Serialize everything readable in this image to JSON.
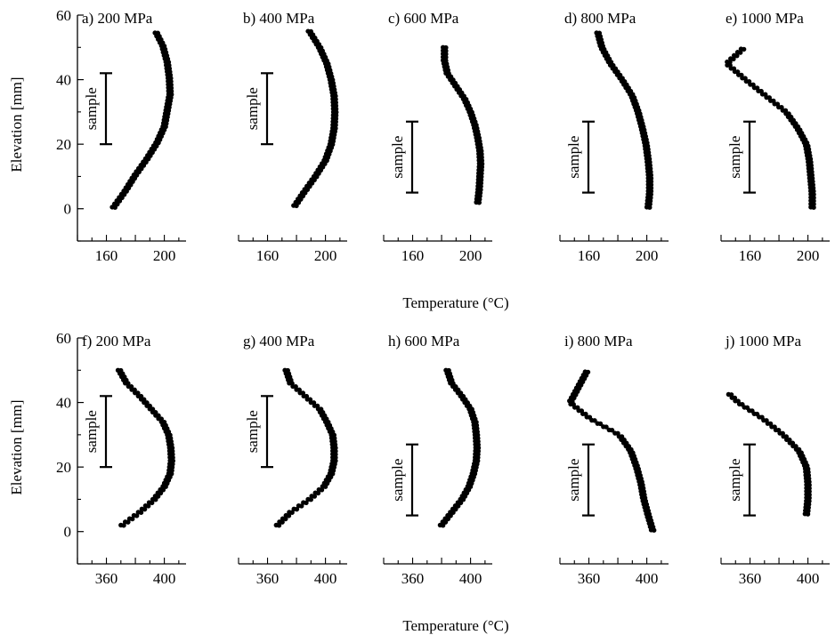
{
  "figure": {
    "xlabel": "Temperature (°C)",
    "ylabel": "Elevation [mm]",
    "sample_label": "sample"
  },
  "chart_data": [
    {
      "type": "scatter",
      "row": 0,
      "col": 0,
      "title": "a) 200 MPa",
      "xlim": [
        140,
        215
      ],
      "ylim": [
        -10,
        60
      ],
      "xticks": [
        160,
        200
      ],
      "xtick_labels": [
        "160",
        "200"
      ],
      "yticks": [
        0,
        20,
        40,
        60
      ],
      "ytick_labels": [
        "0",
        "20",
        "40",
        "60"
      ],
      "sample_range": [
        20,
        42
      ],
      "profile": [
        [
          0.5,
          164
        ],
        [
          5.5,
          172
        ],
        [
          10.5,
          179
        ],
        [
          15.5,
          187
        ],
        [
          20.5,
          194
        ],
        [
          25.5,
          199
        ],
        [
          30.5,
          201
        ],
        [
          35.5,
          203
        ],
        [
          40.5,
          202.5
        ],
        [
          45.5,
          201
        ],
        [
          50.5,
          198
        ],
        [
          55,
          193
        ]
      ]
    },
    {
      "type": "scatter",
      "row": 0,
      "col": 1,
      "title": "b) 400 MPa",
      "xlim": [
        140,
        215
      ],
      "ylim": [
        -10,
        60
      ],
      "xticks": [
        160,
        200
      ],
      "xtick_labels": [
        "160",
        "200"
      ],
      "sample_range": [
        20,
        42
      ],
      "profile": [
        [
          1,
          178
        ],
        [
          5,
          184
        ],
        [
          10,
          192
        ],
        [
          15,
          199
        ],
        [
          20,
          203
        ],
        [
          25,
          205
        ],
        [
          30,
          205.5
        ],
        [
          35,
          205
        ],
        [
          40,
          203
        ],
        [
          45,
          200
        ],
        [
          50,
          195
        ],
        [
          55,
          188
        ]
      ]
    },
    {
      "type": "scatter",
      "row": 0,
      "col": 2,
      "title": "c) 600 MPa",
      "xlim": [
        140,
        215
      ],
      "ylim": [
        -10,
        60
      ],
      "xticks": [
        160,
        200
      ],
      "xtick_labels": [
        "160",
        "200"
      ],
      "sample_range": [
        5,
        27
      ],
      "profile": [
        [
          2,
          204
        ],
        [
          6,
          205
        ],
        [
          10,
          205.5
        ],
        [
          14,
          206
        ],
        [
          18,
          205.5
        ],
        [
          22,
          204
        ],
        [
          26,
          202
        ],
        [
          30,
          199
        ],
        [
          34,
          195
        ],
        [
          38,
          189
        ],
        [
          42,
          183
        ],
        [
          46,
          181
        ],
        [
          50,
          181
        ]
      ]
    },
    {
      "type": "scatter",
      "row": 0,
      "col": 3,
      "title": "d) 800 MPa",
      "xlim": [
        140,
        215
      ],
      "ylim": [
        -10,
        60
      ],
      "xticks": [
        160,
        200
      ],
      "xtick_labels": [
        "160",
        "200"
      ],
      "sample_range": [
        5,
        27
      ],
      "profile": [
        [
          0.5,
          200
        ],
        [
          5,
          201
        ],
        [
          10,
          201
        ],
        [
          15,
          200
        ],
        [
          20,
          198.5
        ],
        [
          25,
          196
        ],
        [
          30,
          193
        ],
        [
          35,
          189
        ],
        [
          40,
          182
        ],
        [
          45,
          174
        ],
        [
          50,
          168
        ],
        [
          55,
          165
        ]
      ]
    },
    {
      "type": "scatter",
      "row": 0,
      "col": 4,
      "title": "e) 1000 MPa",
      "xlim": [
        140,
        215
      ],
      "ylim": [
        -10,
        60
      ],
      "xticks": [
        160,
        200
      ],
      "xtick_labels": [
        "160",
        "200"
      ],
      "sample_range": [
        5,
        27
      ],
      "profile": [
        [
          0.5,
          202
        ],
        [
          5,
          202
        ],
        [
          10,
          201
        ],
        [
          15,
          200
        ],
        [
          20,
          198
        ],
        [
          25,
          192
        ],
        [
          30,
          184
        ],
        [
          35,
          170
        ],
        [
          40,
          156
        ],
        [
          45,
          143
        ],
        [
          50,
          155
        ]
      ]
    },
    {
      "type": "scatter",
      "row": 1,
      "col": 0,
      "title": "f) 200 MPa",
      "xlim": [
        340,
        415
      ],
      "ylim": [
        -10,
        60
      ],
      "xticks": [
        360,
        400
      ],
      "xtick_labels": [
        "360",
        "400"
      ],
      "yticks": [
        0,
        20,
        40,
        60
      ],
      "ytick_labels": [
        "0",
        "20",
        "40",
        "60"
      ],
      "sample_range": [
        20,
        42
      ],
      "profile": [
        [
          2,
          370
        ],
        [
          6,
          382
        ],
        [
          10,
          392
        ],
        [
          14,
          399
        ],
        [
          18,
          403
        ],
        [
          22,
          404
        ],
        [
          26,
          403.5
        ],
        [
          30,
          402
        ],
        [
          34,
          398
        ],
        [
          38,
          390
        ],
        [
          42,
          382
        ],
        [
          46,
          373
        ],
        [
          50,
          368
        ]
      ]
    },
    {
      "type": "scatter",
      "row": 1,
      "col": 1,
      "title": "g) 400 MPa",
      "xlim": [
        340,
        415
      ],
      "ylim": [
        -10,
        60
      ],
      "xticks": [
        360,
        400
      ],
      "xtick_labels": [
        "360",
        "400"
      ],
      "sample_range": [
        20,
        42
      ],
      "profile": [
        [
          2,
          366
        ],
        [
          6,
          375
        ],
        [
          10,
          388
        ],
        [
          14,
          398
        ],
        [
          18,
          403
        ],
        [
          22,
          405
        ],
        [
          26,
          405
        ],
        [
          30,
          404
        ],
        [
          34,
          400
        ],
        [
          38,
          395
        ],
        [
          42,
          385
        ],
        [
          46,
          375
        ],
        [
          50,
          372
        ]
      ]
    },
    {
      "type": "scatter",
      "row": 1,
      "col": 2,
      "title": "h) 600 MPa",
      "xlim": [
        340,
        415
      ],
      "ylim": [
        -10,
        60
      ],
      "xticks": [
        360,
        400
      ],
      "xtick_labels": [
        "360",
        "400"
      ],
      "sample_range": [
        5,
        27
      ],
      "profile": [
        [
          2,
          379
        ],
        [
          6,
          386
        ],
        [
          10,
          393
        ],
        [
          14,
          398
        ],
        [
          18,
          401
        ],
        [
          22,
          403
        ],
        [
          26,
          403.5
        ],
        [
          30,
          403
        ],
        [
          34,
          402
        ],
        [
          38,
          399
        ],
        [
          42,
          393
        ],
        [
          46,
          386
        ],
        [
          50,
          383
        ]
      ]
    },
    {
      "type": "scatter",
      "row": 1,
      "col": 3,
      "title": "i) 800 MPa",
      "xlim": [
        340,
        415
      ],
      "ylim": [
        -10,
        60
      ],
      "xticks": [
        360,
        400
      ],
      "xtick_labels": [
        "360",
        "400"
      ],
      "sample_range": [
        5,
        27
      ],
      "profile": [
        [
          0.5,
          403
        ],
        [
          5,
          400
        ],
        [
          10,
          397
        ],
        [
          15,
          395
        ],
        [
          20,
          392
        ],
        [
          25,
          388
        ],
        [
          30,
          380
        ],
        [
          35,
          360
        ],
        [
          40,
          346
        ],
        [
          45,
          352
        ],
        [
          50,
          358
        ]
      ]
    },
    {
      "type": "scatter",
      "row": 1,
      "col": 4,
      "title": "j) 1000 MPa",
      "xlim": [
        340,
        415
      ],
      "ylim": [
        -10,
        60
      ],
      "xticks": [
        360,
        400
      ],
      "xtick_labels": [
        "360",
        "400"
      ],
      "sample_range": [
        5,
        27
      ],
      "profile": [
        [
          5.5,
          398
        ],
        [
          10,
          399
        ],
        [
          15,
          399
        ],
        [
          20,
          398
        ],
        [
          25,
          393
        ],
        [
          30,
          382
        ],
        [
          35,
          368
        ],
        [
          40,
          351
        ],
        [
          43,
          344
        ]
      ]
    }
  ]
}
